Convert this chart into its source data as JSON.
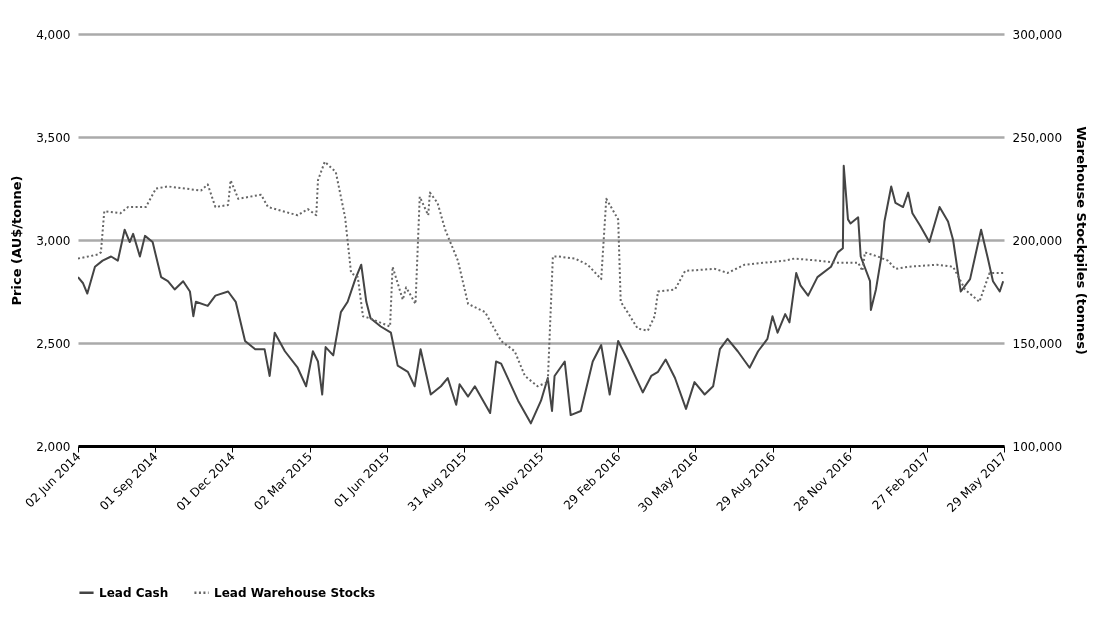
{
  "chart_data": {
    "type": "line",
    "ylabel": "Price (AU$/tonne)",
    "y2label": "Warehouse Stockpiles (tonnes)",
    "xlim": [
      "2014-06-02",
      "2017-05-29"
    ],
    "xticks": [
      {
        "value": "2014-06-02",
        "label": "02 Jun 2014"
      },
      {
        "value": "2014-09-01",
        "label": "01 Sep 2014"
      },
      {
        "value": "2014-12-01",
        "label": "01 Dec 2014"
      },
      {
        "value": "2015-03-02",
        "label": "02 Mar 2015"
      },
      {
        "value": "2015-06-01",
        "label": "01 Jun 2015"
      },
      {
        "value": "2015-08-31",
        "label": "31 Aug 2015"
      },
      {
        "value": "2015-11-30",
        "label": "30 Nov 2015"
      },
      {
        "value": "2016-02-29",
        "label": "29 Feb 2016"
      },
      {
        "value": "2016-05-30",
        "label": "30 May 2016"
      },
      {
        "value": "2016-08-29",
        "label": "29 Aug 2016"
      },
      {
        "value": "2016-11-28",
        "label": "28 Nov 2016"
      },
      {
        "value": "2017-02-27",
        "label": "27 Feb 2017"
      },
      {
        "value": "2017-05-29",
        "label": "29 May 2017"
      }
    ],
    "ylim": [
      2000,
      4000
    ],
    "yticks": [
      {
        "value": 2000,
        "label": "2,000"
      },
      {
        "value": 2500,
        "label": "2,500"
      },
      {
        "value": 3000,
        "label": "3,000"
      },
      {
        "value": 3500,
        "label": "3,500"
      },
      {
        "value": 4000,
        "label": "4,000"
      }
    ],
    "y2lim": [
      100000,
      300000
    ],
    "y2ticks": [
      {
        "value": 100000,
        "label": "100,000"
      },
      {
        "value": 150000,
        "label": "150,000"
      },
      {
        "value": 200000,
        "label": "200,000"
      },
      {
        "value": 250000,
        "label": "250,000"
      },
      {
        "value": 300000,
        "label": "300,000"
      }
    ],
    "grid": "y",
    "legend": "bottom",
    "series": [
      {
        "name": "Lead Cash",
        "color": "#444444",
        "line_style": "solid",
        "x": [
          "2014-06-02",
          "2014-06-08",
          "2014-06-13",
          "2014-06-22",
          "2014-07-01",
          "2014-07-11",
          "2014-07-19",
          "2014-07-27",
          "2014-08-02",
          "2014-08-06",
          "2014-08-14",
          "2014-08-20",
          "2014-08-29",
          "2014-09-08",
          "2014-09-16",
          "2014-09-24",
          "2014-10-04",
          "2014-10-12",
          "2014-10-16",
          "2014-10-19",
          "2014-11-02",
          "2014-11-11",
          "2014-11-26",
          "2014-12-05",
          "2014-12-16",
          "2014-12-28",
          "2015-01-08",
          "2015-01-14",
          "2015-01-20",
          "2015-02-01",
          "2015-02-16",
          "2015-02-26",
          "2015-03-06",
          "2015-03-12",
          "2015-03-17",
          "2015-03-21",
          "2015-03-30",
          "2015-04-08",
          "2015-04-16",
          "2015-04-25",
          "2015-05-02",
          "2015-05-08",
          "2015-05-13",
          "2015-05-25",
          "2015-06-06",
          "2015-06-14",
          "2015-06-26",
          "2015-07-04",
          "2015-07-11",
          "2015-07-23",
          "2015-08-04",
          "2015-08-12",
          "2015-08-22",
          "2015-08-26",
          "2015-09-05",
          "2015-09-13",
          "2015-10-01",
          "2015-10-08",
          "2015-10-14",
          "2015-11-03",
          "2015-11-18",
          "2015-11-30",
          "2015-12-08",
          "2015-12-13",
          "2015-12-16",
          "2015-12-28",
          "2016-01-04",
          "2016-01-16",
          "2016-01-30",
          "2016-02-09",
          "2016-02-19",
          "2016-02-29",
          "2016-03-11",
          "2016-03-29",
          "2016-04-08",
          "2016-04-16",
          "2016-04-25",
          "2016-05-06",
          "2016-05-19",
          "2016-05-29",
          "2016-06-10",
          "2016-06-20",
          "2016-06-28",
          "2016-07-07",
          "2016-07-19",
          "2016-08-02",
          "2016-08-12",
          "2016-08-23",
          "2016-08-29",
          "2016-09-04",
          "2016-09-13",
          "2016-09-18",
          "2016-09-26",
          "2016-10-01",
          "2016-10-10",
          "2016-10-21",
          "2016-11-06",
          "2016-11-14",
          "2016-11-20",
          "2016-11-21",
          "2016-11-26",
          "2016-11-29",
          "2016-12-08",
          "2016-12-11",
          "2016-12-22",
          "2016-12-23",
          "2016-12-29",
          "2017-01-04",
          "2017-01-08",
          "2017-01-16",
          "2017-01-21",
          "2017-01-30",
          "2017-02-05",
          "2017-02-10",
          "2017-02-19",
          "2017-03-02",
          "2017-03-14",
          "2017-03-24",
          "2017-03-30",
          "2017-04-08",
          "2017-04-19",
          "2017-05-02",
          "2017-05-10",
          "2017-05-16",
          "2017-05-24",
          "2017-05-28"
        ],
        "values": [
          2820,
          2790,
          2740,
          2870,
          2900,
          2920,
          2900,
          3050,
          2990,
          3030,
          2920,
          3020,
          2990,
          2820,
          2800,
          2760,
          2800,
          2750,
          2630,
          2700,
          2680,
          2730,
          2750,
          2700,
          2510,
          2470,
          2470,
          2340,
          2550,
          2460,
          2380,
          2290,
          2460,
          2410,
          2250,
          2480,
          2440,
          2650,
          2700,
          2810,
          2880,
          2700,
          2620,
          2580,
          2550,
          2390,
          2360,
          2290,
          2470,
          2250,
          2290,
          2330,
          2200,
          2300,
          2240,
          2290,
          2160,
          2410,
          2400,
          2220,
          2110,
          2220,
          2330,
          2170,
          2340,
          2410,
          2150,
          2170,
          2410,
          2490,
          2250,
          2510,
          2420,
          2260,
          2340,
          2360,
          2420,
          2330,
          2180,
          2310,
          2250,
          2290,
          2470,
          2520,
          2460,
          2380,
          2460,
          2520,
          2630,
          2550,
          2640,
          2600,
          2840,
          2780,
          2730,
          2820,
          2870,
          2940,
          2960,
          3360,
          3100,
          3080,
          3110,
          2920,
          2800,
          2660,
          2760,
          2910,
          3090,
          3260,
          3180,
          3160,
          3230,
          3130,
          3070,
          2990,
          3160,
          3090,
          3000,
          2750,
          2810,
          3050,
          2910,
          2800,
          2750,
          2800
        ]
      },
      {
        "name": "Lead Warehouse Stocks",
        "color": "#666666",
        "line_style": "dotted",
        "axis": "y2",
        "x": [
          "2014-06-02",
          "2014-06-26",
          "2014-06-29",
          "2014-07-03",
          "2014-07-22",
          "2014-07-31",
          "2014-08-21",
          "2014-09-02",
          "2014-09-16",
          "2014-10-25",
          "2014-11-02",
          "2014-11-11",
          "2014-11-26",
          "2014-11-29",
          "2014-12-08",
          "2015-01-04",
          "2015-01-12",
          "2015-02-16",
          "2015-02-28",
          "2015-03-10",
          "2015-03-12",
          "2015-03-20",
          "2015-04-02",
          "2015-04-13",
          "2015-04-20",
          "2015-04-28",
          "2015-05-04",
          "2015-05-12",
          "2015-06-05",
          "2015-06-08",
          "2015-06-20",
          "2015-06-24",
          "2015-07-05",
          "2015-07-10",
          "2015-07-20",
          "2015-07-22",
          "2015-07-31",
          "2015-08-09",
          "2015-08-24",
          "2015-09-05",
          "2015-09-25",
          "2015-10-14",
          "2015-10-30",
          "2015-11-11",
          "2015-11-26",
          "2015-12-08",
          "2015-12-14",
          "2015-12-20",
          "2016-01-09",
          "2016-01-24",
          "2016-02-09",
          "2016-02-15",
          "2016-02-29",
          "2016-03-03",
          "2016-03-11",
          "2016-03-23",
          "2016-04-04",
          "2016-04-12",
          "2016-04-16",
          "2016-05-06",
          "2016-05-18",
          "2016-06-22",
          "2016-07-07",
          "2016-07-27",
          "2016-09-13",
          "2016-09-24",
          "2016-10-21",
          "2016-11-11",
          "2016-12-08",
          "2016-12-13",
          "2016-12-16",
          "2016-12-31",
          "2017-01-12",
          "2017-01-21",
          "2017-02-05",
          "2017-03-11",
          "2017-03-30",
          "2017-04-13",
          "2017-04-30",
          "2017-05-12",
          "2017-05-18",
          "2017-05-28"
        ],
        "values": [
          191000,
          193000,
          194000,
          214000,
          213000,
          216000,
          216000,
          225000,
          226000,
          224000,
          227000,
          216000,
          217000,
          229000,
          220000,
          222000,
          216000,
          212000,
          215000,
          212000,
          229000,
          238000,
          233000,
          211000,
          184000,
          182000,
          163000,
          162000,
          158000,
          187000,
          171000,
          177000,
          169000,
          221000,
          212000,
          223000,
          218000,
          205000,
          190000,
          169000,
          165000,
          151000,
          146000,
          134000,
          129000,
          131000,
          192000,
          192000,
          191000,
          188000,
          181000,
          220000,
          210000,
          170000,
          165000,
          157000,
          156000,
          163000,
          175000,
          176000,
          185000,
          186000,
          184000,
          188000,
          190000,
          191000,
          190000,
          189000,
          189000,
          185000,
          194000,
          192000,
          190000,
          186000,
          187000,
          188000,
          187000,
          176000,
          170000,
          184000,
          184000,
          184000
        ]
      }
    ]
  }
}
